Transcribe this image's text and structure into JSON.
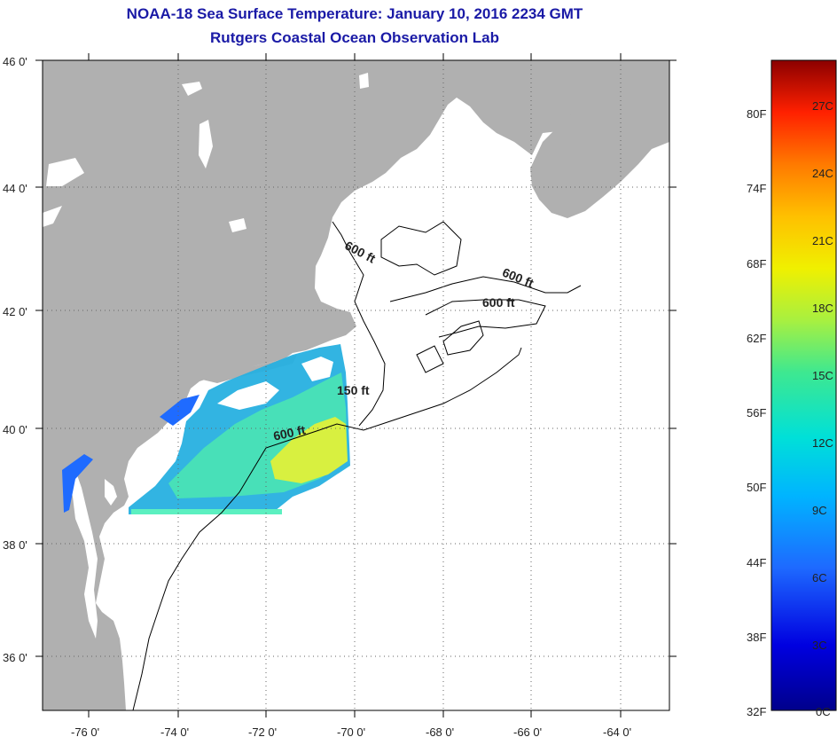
{
  "title": "NOAA-18 Sea Surface Temperature:  January 10, 2016 2234 GMT",
  "subtitle": "Rutgers Coastal Ocean Observation Lab",
  "lat_labels": [
    "46 0'",
    "44 0'",
    "42 0'",
    "40 0'",
    "38 0'",
    "36 0'"
  ],
  "lon_labels": [
    "-76 0'",
    "-74 0'",
    "-72 0'",
    "-70 0'",
    "-68 0'",
    "-66 0'",
    "-64 0'"
  ],
  "contour_labels": [
    "600 ft",
    "600 ft",
    "600 ft",
    "150 ft",
    "600 ft"
  ],
  "colorbar": {
    "fahrenheit": [
      "80F",
      "74F",
      "68F",
      "62F",
      "56F",
      "50F",
      "44F",
      "38F",
      "32F"
    ],
    "celsius": [
      "27C",
      "24C",
      "21C",
      "18C",
      "15C",
      "12C",
      "9C",
      "6C",
      "3C",
      "0C"
    ]
  },
  "colors": {
    "title": "#1a1aa6",
    "land": "#b0b0b0",
    "ocean": "#ffffff"
  }
}
